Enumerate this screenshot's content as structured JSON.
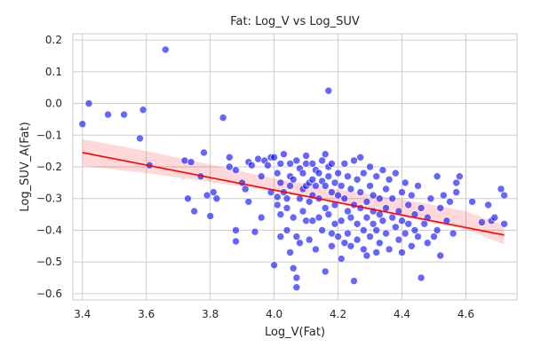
{
  "chart_data": {
    "type": "scatter",
    "title": "Fat: Log_V vs Log_SUV",
    "xlabel": "Log_V(Fat)",
    "ylabel": "Log_SUV_A(Fat)",
    "xlim": [
      3.37,
      4.76
    ],
    "ylim": [
      -0.62,
      0.22
    ],
    "x_ticks": [
      3.4,
      3.6,
      3.8,
      4.0,
      4.2,
      4.4,
      4.6
    ],
    "y_ticks": [
      -0.6,
      -0.5,
      -0.4,
      -0.3,
      -0.2,
      -0.1,
      0.0,
      0.1,
      0.2
    ],
    "x_tick_labels": [
      "3.4",
      "3.6",
      "3.8",
      "4.0",
      "4.2",
      "4.4",
      "4.6"
    ],
    "y_tick_labels": [
      "−0.6",
      "−0.5",
      "−0.4",
      "−0.3",
      "−0.2",
      "−0.1",
      "0.0",
      "0.1",
      "0.2"
    ],
    "grid": true,
    "point_color": "#0000ff",
    "regression": {
      "color": "#ff0000",
      "x": [
        3.4,
        4.72
      ],
      "y": [
        -0.155,
        -0.415
      ],
      "ci_band": {
        "x": [
          3.4,
          3.6,
          3.8,
          4.0,
          4.2,
          4.4,
          4.6,
          4.72
        ],
        "lower": [
          -0.197,
          -0.22,
          -0.248,
          -0.277,
          -0.316,
          -0.358,
          -0.397,
          -0.445
        ],
        "upper": [
          -0.113,
          -0.15,
          -0.193,
          -0.237,
          -0.271,
          -0.302,
          -0.34,
          -0.385
        ]
      }
    },
    "points": [
      [
        3.4,
        -0.065
      ],
      [
        3.42,
        0.0
      ],
      [
        3.48,
        -0.035
      ],
      [
        3.53,
        -0.035
      ],
      [
        3.59,
        -0.02
      ],
      [
        3.58,
        -0.11
      ],
      [
        3.61,
        -0.195
      ],
      [
        3.66,
        0.17
      ],
      [
        3.72,
        -0.18
      ],
      [
        3.73,
        -0.3
      ],
      [
        3.74,
        -0.185
      ],
      [
        3.75,
        -0.34
      ],
      [
        3.77,
        -0.23
      ],
      [
        3.78,
        -0.155
      ],
      [
        3.79,
        -0.29
      ],
      [
        3.8,
        -0.355
      ],
      [
        3.81,
        -0.28
      ],
      [
        3.82,
        -0.3
      ],
      [
        3.84,
        -0.045
      ],
      [
        3.86,
        -0.17
      ],
      [
        3.86,
        -0.2
      ],
      [
        3.88,
        -0.21
      ],
      [
        3.88,
        -0.4
      ],
      [
        3.88,
        -0.435
      ],
      [
        3.9,
        -0.25
      ],
      [
        3.91,
        -0.27
      ],
      [
        3.92,
        -0.185
      ],
      [
        3.92,
        -0.31
      ],
      [
        3.93,
        -0.195
      ],
      [
        3.94,
        -0.405
      ],
      [
        3.95,
        -0.175
      ],
      [
        3.96,
        -0.36
      ],
      [
        3.96,
        -0.23
      ],
      [
        3.97,
        -0.18
      ],
      [
        3.98,
        -0.195
      ],
      [
        3.99,
        -0.28
      ],
      [
        3.99,
        -0.17
      ],
      [
        4.0,
        -0.51
      ],
      [
        4.0,
        -0.17
      ],
      [
        4.01,
        -0.22
      ],
      [
        4.01,
        -0.32
      ],
      [
        4.01,
        -0.295
      ],
      [
        4.02,
        -0.35
      ],
      [
        4.02,
        -0.25
      ],
      [
        4.02,
        -0.42
      ],
      [
        4.02,
        -0.19
      ],
      [
        4.03,
        -0.16
      ],
      [
        4.03,
        -0.28
      ],
      [
        4.04,
        -0.33
      ],
      [
        4.04,
        -0.4
      ],
      [
        4.04,
        -0.3
      ],
      [
        4.05,
        -0.23
      ],
      [
        4.05,
        -0.26
      ],
      [
        4.05,
        -0.19
      ],
      [
        4.05,
        -0.47
      ],
      [
        4.06,
        -0.52
      ],
      [
        4.06,
        -0.36
      ],
      [
        4.06,
        -0.24
      ],
      [
        4.07,
        -0.55
      ],
      [
        4.07,
        -0.58
      ],
      [
        4.07,
        -0.42
      ],
      [
        4.07,
        -0.18
      ],
      [
        4.08,
        -0.205
      ],
      [
        4.08,
        -0.3
      ],
      [
        4.08,
        -0.44
      ],
      [
        4.09,
        -0.27
      ],
      [
        4.09,
        -0.34
      ],
      [
        4.09,
        -0.22
      ],
      [
        4.1,
        -0.19
      ],
      [
        4.1,
        -0.26
      ],
      [
        4.1,
        -0.37
      ],
      [
        4.1,
        -0.165
      ],
      [
        4.11,
        -0.31
      ],
      [
        4.11,
        -0.25
      ],
      [
        4.11,
        -0.43
      ],
      [
        4.12,
        -0.24
      ],
      [
        4.12,
        -0.19
      ],
      [
        4.12,
        -0.37
      ],
      [
        4.12,
        -0.29
      ],
      [
        4.13,
        -0.21
      ],
      [
        4.13,
        -0.46
      ],
      [
        4.13,
        -0.26
      ],
      [
        4.14,
        -0.36
      ],
      [
        4.14,
        -0.22
      ],
      [
        4.14,
        -0.3
      ],
      [
        4.15,
        -0.18
      ],
      [
        4.15,
        -0.4
      ],
      [
        4.15,
        -0.245
      ],
      [
        4.16,
        -0.33
      ],
      [
        4.16,
        -0.26
      ],
      [
        4.16,
        -0.16
      ],
      [
        4.16,
        -0.53
      ],
      [
        4.17,
        0.04
      ],
      [
        4.17,
        -0.23
      ],
      [
        4.17,
        -0.2
      ],
      [
        4.17,
        -0.35
      ],
      [
        4.18,
        -0.28
      ],
      [
        4.18,
        -0.41
      ],
      [
        4.18,
        -0.45
      ],
      [
        4.18,
        -0.19
      ],
      [
        4.19,
        -0.32
      ],
      [
        4.19,
        -0.25
      ],
      [
        4.19,
        -0.38
      ],
      [
        4.2,
        -0.42
      ],
      [
        4.2,
        -0.29
      ],
      [
        4.2,
        -0.22
      ],
      [
        4.21,
        -0.37
      ],
      [
        4.21,
        -0.49
      ],
      [
        4.21,
        -0.26
      ],
      [
        4.22,
        -0.19
      ],
      [
        4.22,
        -0.3
      ],
      [
        4.22,
        -0.44
      ],
      [
        4.23,
        -0.34
      ],
      [
        4.23,
        -0.41
      ],
      [
        4.23,
        -0.23
      ],
      [
        4.24,
        -0.27
      ],
      [
        4.24,
        -0.36
      ],
      [
        4.24,
        -0.45
      ],
      [
        4.25,
        -0.18
      ],
      [
        4.25,
        -0.32
      ],
      [
        4.25,
        -0.56
      ],
      [
        4.26,
        -0.24
      ],
      [
        4.26,
        -0.38
      ],
      [
        4.26,
        -0.43
      ],
      [
        4.27,
        -0.28
      ],
      [
        4.27,
        -0.33
      ],
      [
        4.27,
        -0.17
      ],
      [
        4.28,
        -0.4
      ],
      [
        4.28,
        -0.46
      ],
      [
        4.28,
        -0.22
      ],
      [
        4.29,
        -0.31
      ],
      [
        4.29,
        -0.36
      ],
      [
        4.29,
        -0.48
      ],
      [
        4.3,
        -0.26
      ],
      [
        4.3,
        -0.42
      ],
      [
        4.3,
        -0.2
      ],
      [
        4.31,
        -0.34
      ],
      [
        4.31,
        -0.38
      ],
      [
        4.31,
        -0.29
      ],
      [
        4.32,
        -0.47
      ],
      [
        4.32,
        -0.23
      ],
      [
        4.32,
        -0.4
      ],
      [
        4.33,
        -0.35
      ],
      [
        4.33,
        -0.3
      ],
      [
        4.33,
        -0.44
      ],
      [
        4.34,
        -0.21
      ],
      [
        4.34,
        -0.37
      ],
      [
        4.35,
        -0.27
      ],
      [
        4.35,
        -0.41
      ],
      [
        4.35,
        -0.33
      ],
      [
        4.36,
        -0.46
      ],
      [
        4.36,
        -0.24
      ],
      [
        4.37,
        -0.36
      ],
      [
        4.37,
        -0.3
      ],
      [
        4.38,
        -0.39
      ],
      [
        4.38,
        -0.22
      ],
      [
        4.39,
        -0.43
      ],
      [
        4.39,
        -0.34
      ],
      [
        4.4,
        -0.28
      ],
      [
        4.4,
        -0.47
      ],
      [
        4.4,
        -0.37
      ],
      [
        4.41,
        -0.25
      ],
      [
        4.41,
        -0.41
      ],
      [
        4.42,
        -0.32
      ],
      [
        4.42,
        -0.38
      ],
      [
        4.43,
        -0.45
      ],
      [
        4.43,
        -0.29
      ],
      [
        4.44,
        -0.35
      ],
      [
        4.44,
        -0.4
      ],
      [
        4.45,
        -0.26
      ],
      [
        4.45,
        -0.42
      ],
      [
        4.46,
        -0.55
      ],
      [
        4.46,
        -0.33
      ],
      [
        4.47,
        -0.38
      ],
      [
        4.48,
        -0.36
      ],
      [
        4.48,
        -0.44
      ],
      [
        4.49,
        -0.3
      ],
      [
        4.5,
        -0.42
      ],
      [
        4.51,
        -0.23
      ],
      [
        4.51,
        -0.4
      ],
      [
        4.52,
        -0.48
      ],
      [
        4.52,
        -0.33
      ],
      [
        4.53,
        -0.29
      ],
      [
        4.54,
        -0.37
      ],
      [
        4.55,
        -0.31
      ],
      [
        4.56,
        -0.41
      ],
      [
        4.57,
        -0.25
      ],
      [
        4.57,
        -0.28
      ],
      [
        4.58,
        -0.23
      ],
      [
        4.62,
        -0.31
      ],
      [
        4.65,
        -0.375
      ],
      [
        4.67,
        -0.32
      ],
      [
        4.68,
        -0.37
      ],
      [
        4.69,
        -0.36
      ],
      [
        4.71,
        -0.27
      ],
      [
        4.72,
        -0.29
      ],
      [
        4.72,
        -0.38
      ]
    ]
  }
}
